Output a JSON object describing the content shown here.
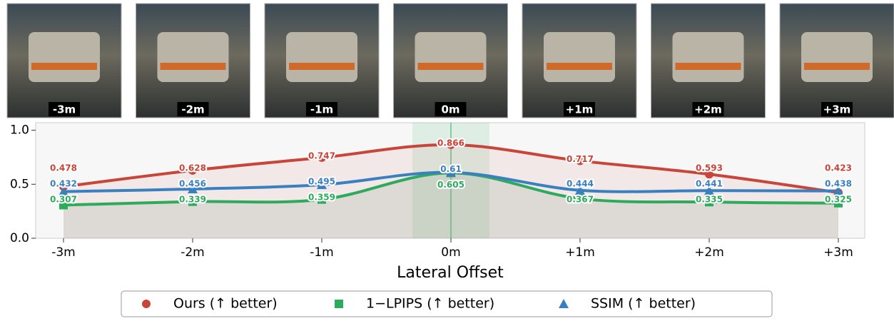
{
  "chart_data": {
    "type": "line",
    "x_label": "Lateral Offset",
    "categories": [
      "-3m",
      "-2m",
      "-1m",
      "0m",
      "+1m",
      "+2m",
      "+3m"
    ],
    "ylim": [
      0,
      1.07
    ],
    "yticks": [
      0.0,
      0.5,
      1.0
    ],
    "y_tick_labels": [
      "0.0",
      "0.5",
      "1.0"
    ],
    "highlight_category": "0m",
    "series": [
      {
        "name": "Ours (↑ better)",
        "color": "#c8453a",
        "marker": "circle",
        "values": [
          0.478,
          0.628,
          0.747,
          0.866,
          0.717,
          0.593,
          0.423
        ]
      },
      {
        "name": "1−LPIPS (↑ better)",
        "color": "#2eaa5c",
        "marker": "square",
        "values": [
          0.307,
          0.339,
          0.359,
          0.605,
          0.367,
          0.335,
          0.325
        ]
      },
      {
        "name": "SSIM (↑ better)",
        "color": "#3a80c0",
        "marker": "triangle",
        "values": [
          0.432,
          0.456,
          0.495,
          0.61,
          0.444,
          0.441,
          0.438
        ]
      }
    ]
  }
}
